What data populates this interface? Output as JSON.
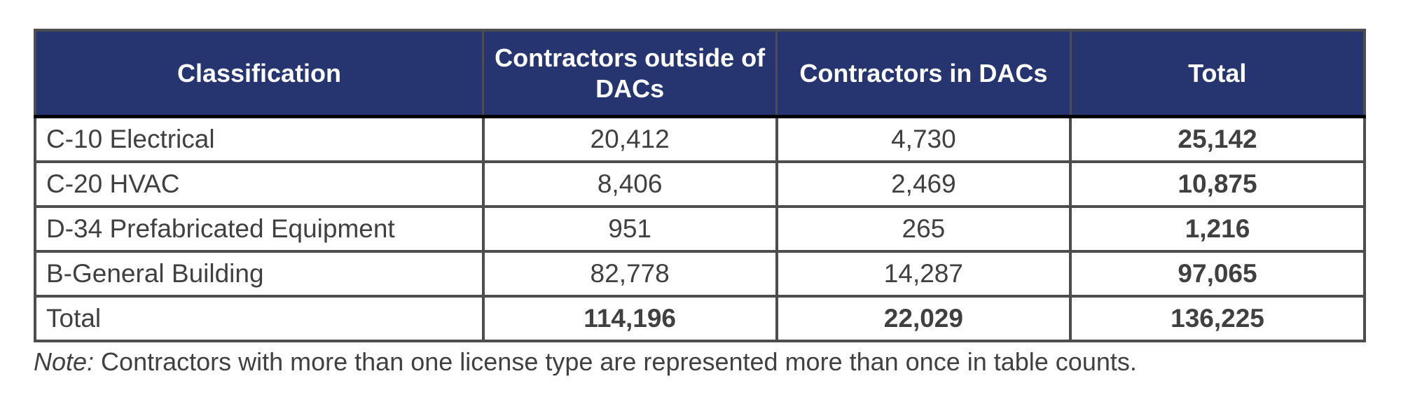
{
  "table": {
    "headers": [
      "Classification",
      "Contractors outside of DACs",
      "Contractors in DACs",
      "Total"
    ],
    "rows": [
      {
        "classification": "C-10 Electrical",
        "outside": "20,412",
        "in": "4,730",
        "total": "25,142"
      },
      {
        "classification": "C-20 HVAC",
        "outside": "8,406",
        "in": "2,469",
        "total": "10,875"
      },
      {
        "classification": "D-34 Prefabricated Equipment",
        "outside": "951",
        "in": "265",
        "total": "1,216"
      },
      {
        "classification": "B-General Building",
        "outside": "82,778",
        "in": "14,287",
        "total": "97,065"
      },
      {
        "classification": "Total",
        "outside": "114,196",
        "in": "22,029",
        "total": "136,225"
      }
    ]
  },
  "note": {
    "label": "Note:",
    "text": " Contractors with more than one license type are represented more than once in table counts."
  },
  "colors": {
    "header_bg": "#263570",
    "header_text": "#ffffff",
    "body_text": "#404040",
    "border": "#4d4d4d"
  }
}
